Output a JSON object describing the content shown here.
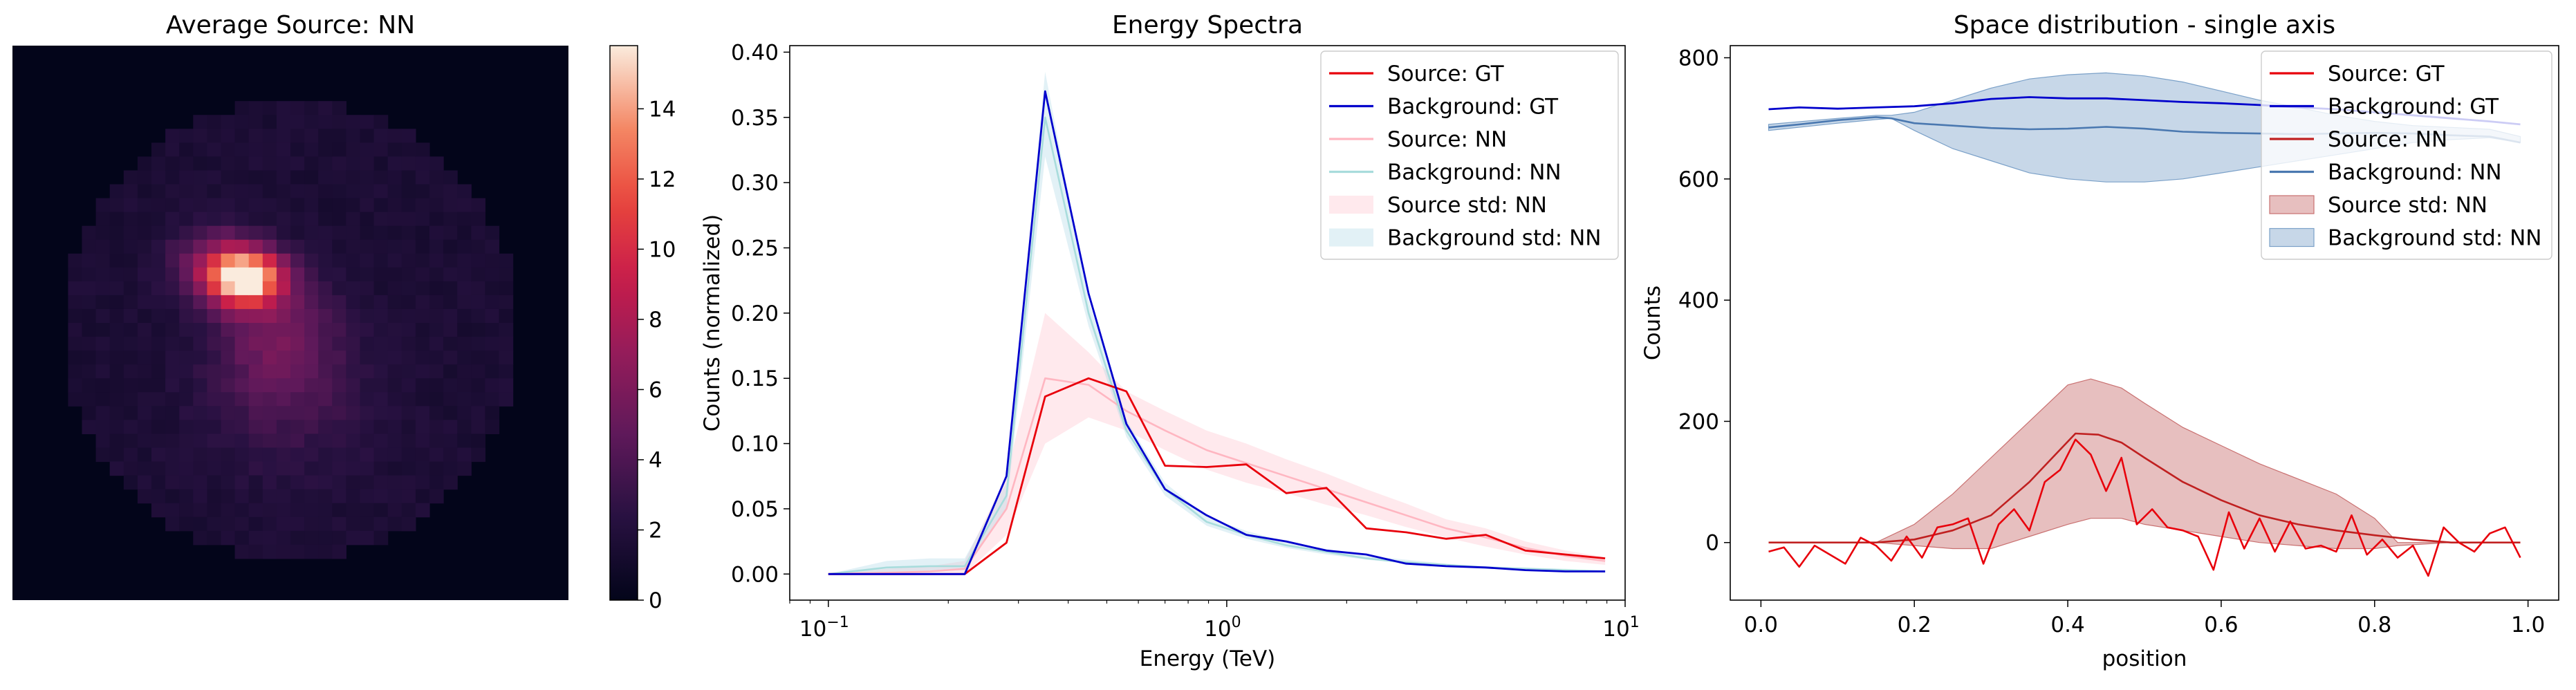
{
  "colors": {
    "source_gt": "#e8000b",
    "background_gt": "#0000cc",
    "source_nn": "#ffb6c1",
    "background_nn": "#a8dcdc",
    "source_std_nn": "#ffc0cb",
    "background_std_nn": "#add8e6",
    "source_nn_space": "#c02020",
    "background_nn_space": "#4a78b0",
    "source_std_space": "#c97070",
    "background_std_space": "#7aa0c8"
  },
  "chart_data": [
    {
      "type": "heatmap",
      "title": "Average Source: NN",
      "colormap": "rocket",
      "colorbar": {
        "min": 0,
        "max": 15.8,
        "ticks": [
          0,
          2,
          4,
          6,
          8,
          10,
          12,
          14
        ]
      },
      "grid": false,
      "note_values": "40x40 pixel image; circular field of view, bright blob near upper-left of centre (peak ~15.8)"
    },
    {
      "type": "line",
      "title": "Energy Spectra",
      "xlabel": "Energy (TeV)",
      "ylabel": "Counts (normalized)",
      "xscale": "log",
      "xlim": [
        0.08,
        10
      ],
      "ylim": [
        -0.02,
        0.405
      ],
      "xticks": [
        "10^-1",
        "10^0",
        "10^1"
      ],
      "yticks": [
        "0.00",
        "0.05",
        "0.10",
        "0.15",
        "0.20",
        "0.25",
        "0.30",
        "0.35",
        "0.40"
      ],
      "legend": "top-right",
      "legend_entries": [
        "Source: GT",
        "Background: GT",
        "Source: NN",
        "Background: NN",
        "Source std: NN",
        "Background std: NN"
      ],
      "x": [
        0.1,
        0.14,
        0.18,
        0.22,
        0.28,
        0.35,
        0.45,
        0.56,
        0.7,
        0.89,
        1.12,
        1.41,
        1.78,
        2.24,
        2.82,
        3.55,
        4.47,
        5.62,
        7.08,
        8.91
      ],
      "series": [
        {
          "name": "Source: GT",
          "values": [
            0,
            0,
            0,
            0,
            0.024,
            0.136,
            0.15,
            0.14,
            0.083,
            0.082,
            0.084,
            0.062,
            0.066,
            0.035,
            0.032,
            0.027,
            0.03,
            0.018,
            0.015,
            0.012
          ]
        },
        {
          "name": "Background: GT",
          "values": [
            0,
            0,
            0,
            0,
            0.075,
            0.37,
            0.215,
            0.115,
            0.065,
            0.045,
            0.03,
            0.025,
            0.018,
            0.015,
            0.008,
            0.006,
            0.005,
            0.003,
            0.002,
            0.002
          ]
        },
        {
          "name": "Source: NN",
          "values": [
            0,
            0.001,
            0.002,
            0.004,
            0.05,
            0.15,
            0.145,
            0.125,
            0.11,
            0.095,
            0.085,
            0.075,
            0.065,
            0.055,
            0.045,
            0.035,
            0.028,
            0.02,
            0.014,
            0.01
          ]
        },
        {
          "name": "Background: NN",
          "values": [
            0,
            0.005,
            0.006,
            0.006,
            0.06,
            0.35,
            0.2,
            0.11,
            0.065,
            0.04,
            0.03,
            0.022,
            0.017,
            0.012,
            0.009,
            0.007,
            0.005,
            0.004,
            0.003,
            0.002
          ]
        },
        {
          "name": "Source std: NN",
          "lower": [
            0,
            0,
            0,
            0,
            0.03,
            0.1,
            0.12,
            0.11,
            0.095,
            0.08,
            0.07,
            0.062,
            0.053,
            0.045,
            0.036,
            0.028,
            0.021,
            0.015,
            0.01,
            0.007
          ],
          "upper": [
            0,
            0.004,
            0.006,
            0.01,
            0.075,
            0.2,
            0.17,
            0.14,
            0.125,
            0.11,
            0.1,
            0.088,
            0.077,
            0.065,
            0.054,
            0.042,
            0.035,
            0.025,
            0.018,
            0.013
          ]
        },
        {
          "name": "Background std: NN",
          "lower": [
            0,
            0.001,
            0.002,
            0.003,
            0.05,
            0.32,
            0.19,
            0.105,
            0.06,
            0.037,
            0.027,
            0.02,
            0.015,
            0.011,
            0.008,
            0.006,
            0.004,
            0.003,
            0.002,
            0.001
          ],
          "upper": [
            0,
            0.01,
            0.012,
            0.012,
            0.07,
            0.385,
            0.21,
            0.118,
            0.07,
            0.044,
            0.033,
            0.025,
            0.019,
            0.014,
            0.011,
            0.008,
            0.006,
            0.005,
            0.004,
            0.003
          ]
        }
      ]
    },
    {
      "type": "line",
      "title": "Space distribution - single axis",
      "xlabel": "position",
      "ylabel": "Counts",
      "xlim": [
        -0.04,
        1.04
      ],
      "ylim": [
        -95,
        820
      ],
      "xticks": [
        0.0,
        0.2,
        0.4,
        0.6,
        0.8,
        1.0
      ],
      "yticks": [
        0,
        200,
        400,
        600,
        800
      ],
      "legend": "top-right",
      "legend_entries": [
        "Source: GT",
        "Background: GT",
        "Source: NN",
        "Background: NN",
        "Source std: NN",
        "Background std: NN"
      ],
      "series": [
        {
          "name": "Source: GT",
          "x": [
            0.01,
            0.03,
            0.05,
            0.07,
            0.09,
            0.11,
            0.13,
            0.15,
            0.17,
            0.19,
            0.21,
            0.23,
            0.25,
            0.27,
            0.29,
            0.31,
            0.33,
            0.35,
            0.37,
            0.39,
            0.41,
            0.43,
            0.45,
            0.47,
            0.49,
            0.51,
            0.53,
            0.55,
            0.57,
            0.59,
            0.61,
            0.63,
            0.65,
            0.67,
            0.69,
            0.71,
            0.73,
            0.75,
            0.77,
            0.79,
            0.81,
            0.83,
            0.85,
            0.87,
            0.89,
            0.91,
            0.93,
            0.95,
            0.97,
            0.99
          ],
          "values": [
            -15,
            -8,
            -40,
            -5,
            -20,
            -35,
            8,
            -5,
            -30,
            10,
            -25,
            25,
            30,
            40,
            -35,
            30,
            55,
            20,
            100,
            120,
            170,
            145,
            85,
            140,
            30,
            55,
            25,
            20,
            10,
            -45,
            50,
            -10,
            40,
            -15,
            35,
            -10,
            -5,
            -15,
            45,
            -20,
            5,
            -25,
            -5,
            -55,
            25,
            0,
            -15,
            15,
            25,
            -25
          ]
        },
        {
          "name": "Background: GT",
          "x": [
            0.01,
            0.05,
            0.1,
            0.15,
            0.2,
            0.25,
            0.3,
            0.35,
            0.4,
            0.45,
            0.5,
            0.55,
            0.6,
            0.65,
            0.7,
            0.75,
            0.8,
            0.85,
            0.9,
            0.95,
            0.99
          ],
          "values": [
            715,
            718,
            716,
            718,
            720,
            725,
            732,
            735,
            733,
            733,
            730,
            727,
            725,
            722,
            718,
            715,
            710,
            705,
            700,
            695,
            690
          ]
        },
        {
          "name": "Source: NN",
          "x": [
            0.01,
            0.05,
            0.1,
            0.15,
            0.2,
            0.25,
            0.3,
            0.35,
            0.38,
            0.41,
            0.44,
            0.47,
            0.5,
            0.55,
            0.6,
            0.65,
            0.7,
            0.75,
            0.8,
            0.85,
            0.9,
            0.95,
            0.99
          ],
          "values": [
            0,
            0,
            0,
            0,
            5,
            20,
            45,
            100,
            140,
            180,
            178,
            165,
            140,
            100,
            70,
            45,
            30,
            20,
            12,
            5,
            0,
            0,
            0
          ]
        },
        {
          "name": "Background: NN",
          "x": [
            0.01,
            0.05,
            0.1,
            0.15,
            0.17,
            0.2,
            0.25,
            0.3,
            0.35,
            0.4,
            0.45,
            0.5,
            0.55,
            0.6,
            0.65,
            0.7,
            0.75,
            0.8,
            0.85,
            0.9,
            0.95,
            0.99
          ],
          "values": [
            685,
            690,
            697,
            702,
            700,
            692,
            688,
            684,
            682,
            683,
            686,
            683,
            678,
            676,
            675,
            674,
            675,
            676,
            675,
            672,
            670,
            660
          ]
        },
        {
          "name": "Source std: NN",
          "x": [
            0.01,
            0.1,
            0.15,
            0.2,
            0.25,
            0.3,
            0.35,
            0.4,
            0.43,
            0.47,
            0.5,
            0.55,
            0.6,
            0.65,
            0.7,
            0.75,
            0.8,
            0.83,
            0.9,
            0.99
          ],
          "lower": [
            0,
            0,
            0,
            -5,
            -10,
            -10,
            10,
            30,
            40,
            40,
            30,
            20,
            10,
            0,
            -5,
            -10,
            -10,
            -5,
            0,
            0
          ],
          "upper": [
            0,
            0,
            0,
            30,
            80,
            140,
            200,
            260,
            270,
            255,
            230,
            190,
            160,
            130,
            105,
            80,
            40,
            0,
            0,
            0
          ]
        },
        {
          "name": "Background std: NN",
          "x": [
            0.01,
            0.1,
            0.15,
            0.17,
            0.2,
            0.25,
            0.3,
            0.35,
            0.4,
            0.45,
            0.5,
            0.55,
            0.6,
            0.65,
            0.7,
            0.75,
            0.8,
            0.85,
            0.9,
            0.95,
            0.99
          ],
          "lower": [
            680,
            692,
            698,
            700,
            680,
            650,
            630,
            610,
            600,
            595,
            595,
            600,
            610,
            620,
            630,
            640,
            650,
            660,
            665,
            668,
            660
          ],
          "upper": [
            690,
            700,
            705,
            705,
            710,
            730,
            750,
            765,
            772,
            775,
            770,
            760,
            745,
            730,
            718,
            705,
            695,
            688,
            685,
            682,
            670
          ]
        }
      ]
    }
  ]
}
